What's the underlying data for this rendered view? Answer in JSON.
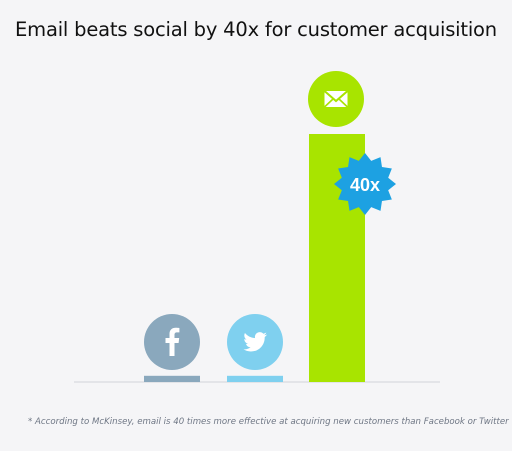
{
  "title": "Email beats social by 40x for customer acquisition",
  "footnote": "* According to McKinsey, email is 40 times more effective at acquiring new customers than Facebook or Twitter",
  "badge_label": "40x",
  "colors": {
    "facebook": "#8aa8bd",
    "twitter": "#7fd0ef",
    "email": "#a8e400",
    "badge": "#1da1e2",
    "baseline": "#e3e4e8",
    "background": "#f5f5f7"
  },
  "chart_data": {
    "type": "bar",
    "categories": [
      "Facebook",
      "Twitter",
      "Email"
    ],
    "values": [
      1,
      1,
      40
    ],
    "icons": [
      "facebook-icon",
      "twitter-icon",
      "email-icon"
    ],
    "ylim": [
      0,
      40
    ],
    "grid": false,
    "xlabel": "",
    "ylabel": ""
  }
}
